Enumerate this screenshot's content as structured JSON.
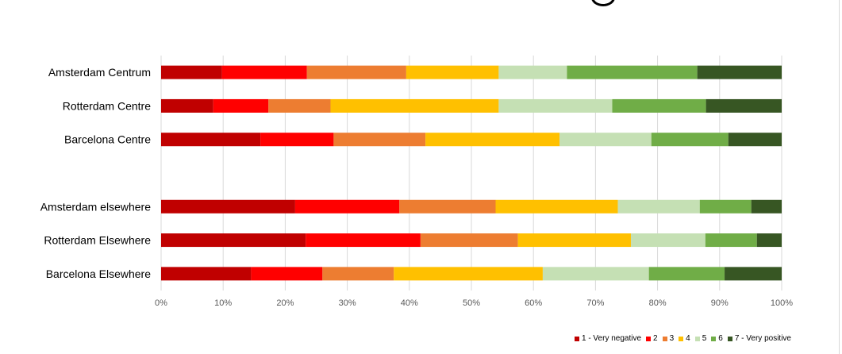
{
  "chart_data": {
    "type": "bar",
    "orientation": "horizontal",
    "stacked": true,
    "percent_stacked": true,
    "categories": [
      "Amsterdam Centrum",
      "Rotterdam Centre",
      "Barcelona Centre",
      "",
      "Amsterdam elsewhere",
      "Rotterdam Elsewhere",
      "Barcelona Elsewhere"
    ],
    "series": [
      {
        "name": "1 - Very negative",
        "color": "#C00000",
        "values": [
          9.8,
          8.4,
          16.0,
          null,
          21.6,
          23.3,
          14.5
        ]
      },
      {
        "name": "2",
        "color": "#FF0000",
        "values": [
          13.7,
          8.9,
          11.8,
          null,
          16.8,
          18.5,
          11.5
        ]
      },
      {
        "name": "3",
        "color": "#ED7D31",
        "values": [
          16.0,
          10.0,
          14.8,
          null,
          15.5,
          15.7,
          11.5
        ]
      },
      {
        "name": "4",
        "color": "#FFC000",
        "values": [
          14.9,
          27.1,
          21.6,
          null,
          19.7,
          18.2,
          24.0
        ]
      },
      {
        "name": "5",
        "color": "#C5E0B4",
        "values": [
          11.0,
          18.3,
          14.8,
          null,
          13.2,
          12.0,
          17.1
        ]
      },
      {
        "name": "6",
        "color": "#70AD47",
        "values": [
          21.0,
          15.1,
          12.4,
          null,
          8.3,
          8.3,
          12.2
        ]
      },
      {
        "name": "7 - Very positive",
        "color": "#375623",
        "values": [
          13.6,
          12.2,
          8.6,
          null,
          4.9,
          4.0,
          9.2
        ]
      }
    ],
    "x_ticks": [
      "0%",
      "10%",
      "20%",
      "30%",
      "40%",
      "50%",
      "60%",
      "70%",
      "80%",
      "90%",
      "100%"
    ],
    "xlim": [
      0,
      100
    ],
    "grid": true,
    "legend_position": "bottom-right"
  }
}
